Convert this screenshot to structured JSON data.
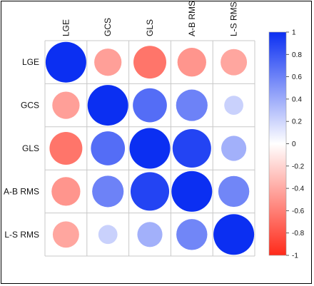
{
  "chart_data": {
    "type": "heatmap",
    "variables": [
      "LGE",
      "GCS",
      "GLS",
      "A-B RMS",
      "L-S RMS"
    ],
    "matrix": [
      [
        1.0,
        -0.45,
        -0.65,
        -0.5,
        -0.42
      ],
      [
        -0.45,
        1.0,
        0.7,
        0.6,
        0.22
      ],
      [
        -0.65,
        0.7,
        1.0,
        0.9,
        0.38
      ],
      [
        -0.5,
        0.6,
        0.9,
        1.0,
        0.58
      ],
      [
        -0.42,
        0.22,
        0.38,
        0.58,
        1.0
      ]
    ],
    "colorbar": {
      "ticks": [
        "1",
        "0.8",
        "0.6",
        "0.4",
        "0.2",
        "0",
        "-0.2",
        "-0.4",
        "-0.6",
        "-0.8",
        "-1"
      ],
      "range": [
        -1,
        1
      ]
    },
    "colors": {
      "positive": "#0b2ff2",
      "negative": "#ff2a1a",
      "zero": "#ffffff",
      "grid": "#c8c8c8"
    }
  }
}
